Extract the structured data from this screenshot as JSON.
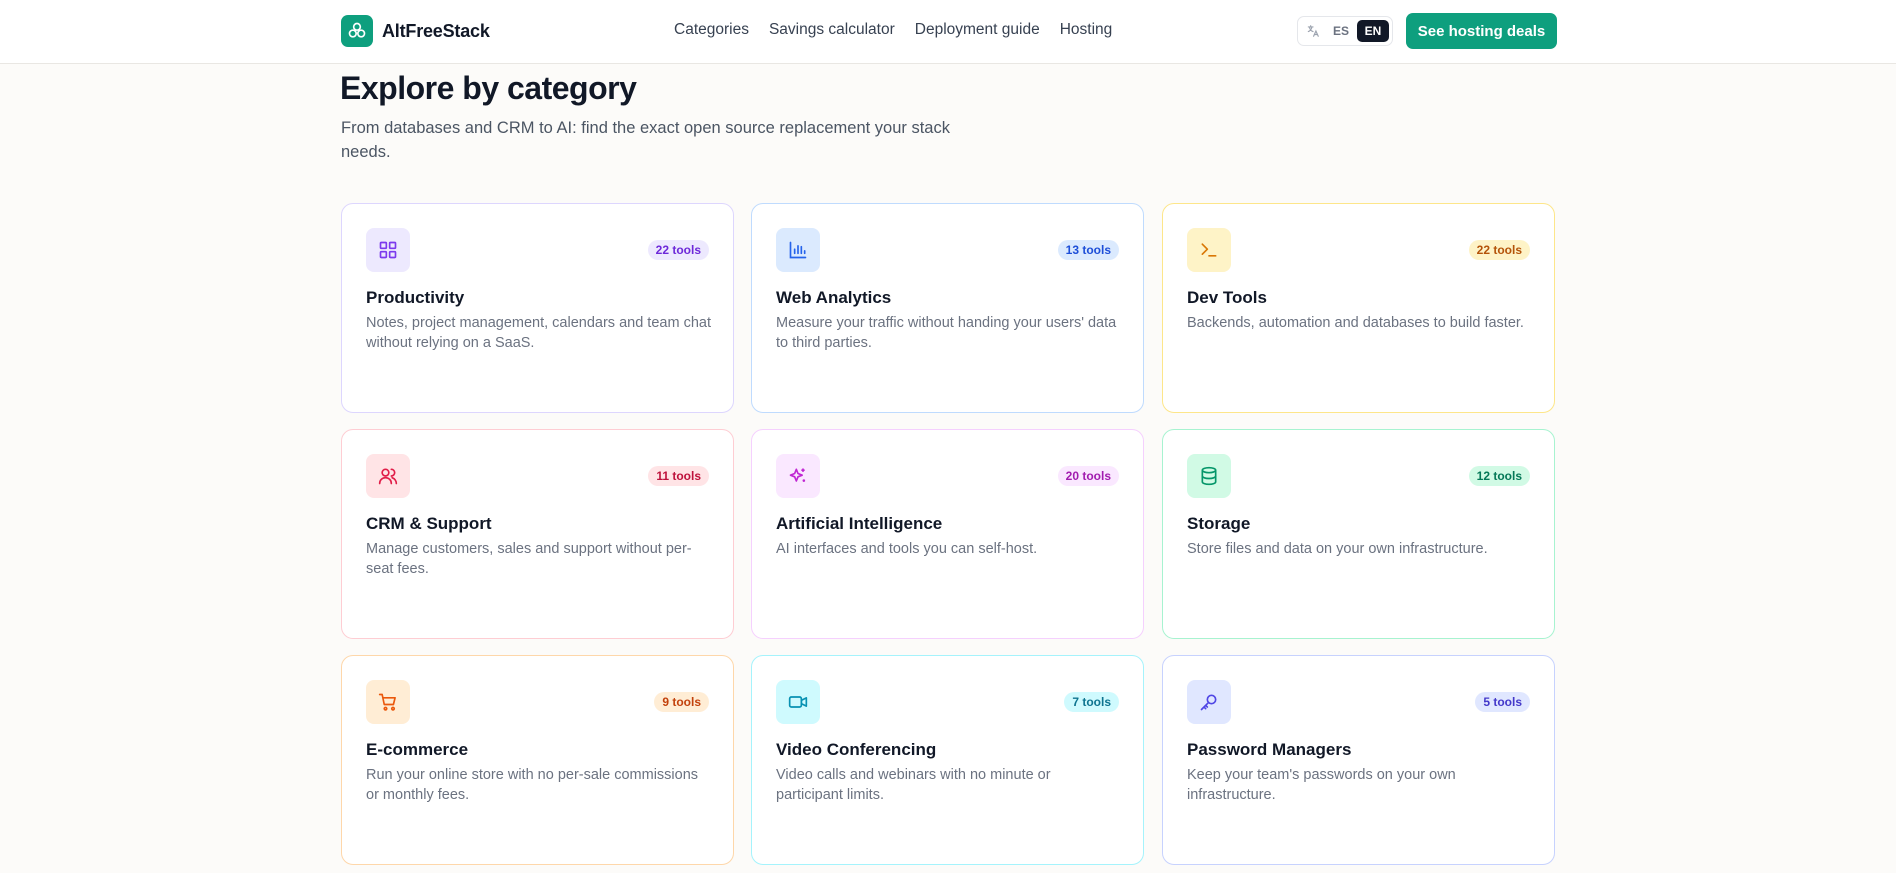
{
  "header": {
    "brand_name": "AltFreeStack",
    "nav": [
      "Categories",
      "Savings calculator",
      "Deployment guide",
      "Hosting"
    ],
    "lang_options": [
      "ES",
      "EN"
    ],
    "active_lang": "EN",
    "cta_label": "See hosting deals"
  },
  "section": {
    "title": "Explore by category",
    "subtitle": "From databases and CRM to AI: find the exact open source replacement your stack needs."
  },
  "colors": {
    "brand": "#0e9f7e",
    "productivity": "#7c3aed",
    "web_analytics": "#2563eb",
    "dev_tools": "#d97706",
    "crm": "#e11d48",
    "ai": "#c026d3",
    "storage": "#059669",
    "ecommerce": "#ea580c",
    "video": "#0891b2",
    "passwords": "#4f46e5"
  },
  "categories": [
    {
      "title": "Productivity",
      "count": "22 tools",
      "icon": "grid-icon",
      "description": "Notes, project management, calendars and team chat without relying on a SaaS."
    },
    {
      "title": "Web Analytics",
      "count": "13 tools",
      "icon": "bar-chart-icon",
      "description": "Measure your traffic without handing your users' data to third parties."
    },
    {
      "title": "Dev Tools",
      "count": "22 tools",
      "icon": "terminal-icon",
      "description": "Backends, automation and databases to build faster."
    },
    {
      "title": "CRM & Support",
      "count": "11 tools",
      "icon": "users-icon",
      "description": "Manage customers, sales and support without per-seat fees."
    },
    {
      "title": "Artificial Intelligence",
      "count": "20 tools",
      "icon": "sparkles-icon",
      "description": "AI interfaces and tools you can self-host."
    },
    {
      "title": "Storage",
      "count": "12 tools",
      "icon": "database-icon",
      "description": "Store files and data on your own infrastructure."
    },
    {
      "title": "E-commerce",
      "count": "9 tools",
      "icon": "shopping-cart-icon",
      "description": "Run your online store with no per-sale commissions or monthly fees."
    },
    {
      "title": "Video Conferencing",
      "count": "7 tools",
      "icon": "video-icon",
      "description": "Video calls and webinars with no minute or participant limits."
    },
    {
      "title": "Password Managers",
      "count": "5 tools",
      "icon": "key-icon",
      "description": "Keep your team's passwords on your own infrastructure."
    }
  ]
}
